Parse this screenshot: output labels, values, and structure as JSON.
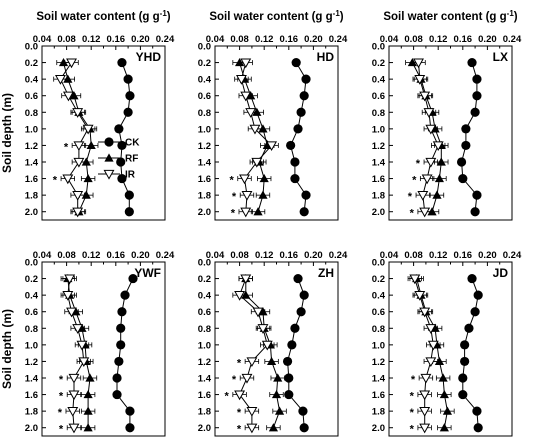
{
  "figure": {
    "x_axis_title": "Soil water content (g g",
    "x_axis_title_sup": "-1",
    "x_axis_title_close": ")",
    "y_axis_title": "Soil depth (m)"
  },
  "legend": {
    "labels": [
      "CK",
      "RF",
      "IR"
    ]
  },
  "chart_data": [
    {
      "type": "line",
      "title": "YHD",
      "xlabel": "Soil water content (g g-1)",
      "ylabel": "Soil depth (m)",
      "xlim": [
        0.04,
        0.24
      ],
      "ylim": [
        2.1,
        0.0
      ],
      "x_axis_position": "top",
      "xticks": [
        "0.04",
        "0.08",
        "0.12",
        "0.16",
        "0.20",
        "0.24"
      ],
      "yticks": [
        "0.0",
        "0.2",
        "0.4",
        "0.6",
        "0.8",
        "1.0",
        "1.2",
        "1.4",
        "1.6",
        "1.8",
        "2.0"
      ],
      "depths": [
        0.2,
        0.4,
        0.6,
        0.8,
        1.0,
        1.2,
        1.4,
        1.6,
        1.8,
        2.0
      ],
      "series": [
        {
          "name": "CK",
          "values": [
            0.17,
            0.18,
            0.183,
            0.18,
            0.165,
            0.17,
            0.168,
            0.17,
            0.182,
            0.182
          ]
        },
        {
          "name": "RF",
          "values": [
            0.075,
            0.082,
            0.092,
            0.1,
            0.118,
            0.12,
            0.112,
            0.115,
            0.112,
            0.1
          ]
        },
        {
          "name": "IR",
          "values": [
            0.088,
            0.07,
            0.083,
            0.098,
            0.115,
            0.1,
            0.1,
            0.082,
            0.098,
            0.098
          ]
        }
      ],
      "significance_markers": [
        "",
        "",
        "",
        "",
        "",
        "*",
        "",
        "*",
        "",
        ""
      ]
    },
    {
      "type": "line",
      "title": "HD",
      "xlabel": "Soil water content (g g-1)",
      "ylabel": "Soil depth (m)",
      "xlim": [
        0.04,
        0.24
      ],
      "ylim": [
        2.1,
        0.0
      ],
      "x_axis_position": "top",
      "xticks": [
        "0.04",
        "0.08",
        "0.12",
        "0.16",
        "0.20",
        "0.24"
      ],
      "yticks": [
        "0.0",
        "0.2",
        "0.4",
        "0.6",
        "0.8",
        "1.0",
        "1.2",
        "1.4",
        "1.6",
        "1.8",
        "2.0"
      ],
      "depths": [
        0.2,
        0.4,
        0.6,
        0.8,
        1.0,
        1.2,
        1.4,
        1.6,
        1.8,
        2.0
      ],
      "series": [
        {
          "name": "CK",
          "values": [
            0.172,
            0.188,
            0.185,
            0.18,
            0.175,
            0.163,
            0.17,
            0.17,
            0.188,
            0.185
          ]
        },
        {
          "name": "RF",
          "values": [
            0.08,
            0.088,
            0.098,
            0.108,
            0.118,
            0.125,
            0.112,
            0.12,
            0.118,
            0.11
          ]
        },
        {
          "name": "IR",
          "values": [
            0.09,
            0.083,
            0.09,
            0.098,
            0.105,
            0.132,
            0.108,
            0.088,
            0.092,
            0.09
          ]
        }
      ],
      "significance_markers": [
        "",
        "",
        "",
        "",
        "",
        "",
        "",
        "*",
        "*",
        "*"
      ]
    },
    {
      "type": "line",
      "title": "LX",
      "xlabel": "Soil water content (g g-1)",
      "ylabel": "Soil depth (m)",
      "xlim": [
        0.04,
        0.24
      ],
      "ylim": [
        2.1,
        0.0
      ],
      "x_axis_position": "top",
      "xticks": [
        "0.04",
        "0.08",
        "0.12",
        "0.16",
        "0.20",
        "0.24"
      ],
      "yticks": [
        "0.0",
        "0.2",
        "0.4",
        "0.6",
        "0.8",
        "1.0",
        "1.2",
        "1.4",
        "1.6",
        "1.8",
        "2.0"
      ],
      "depths": [
        0.2,
        0.4,
        0.6,
        0.8,
        1.0,
        1.2,
        1.4,
        1.6,
        1.8,
        2.0
      ],
      "series": [
        {
          "name": "CK",
          "values": [
            0.175,
            0.183,
            0.183,
            0.18,
            0.165,
            0.165,
            0.158,
            0.16,
            0.183,
            0.18
          ]
        },
        {
          "name": "RF",
          "values": [
            0.078,
            0.092,
            0.1,
            0.11,
            0.115,
            0.125,
            0.125,
            0.122,
            0.118,
            0.11
          ]
        },
        {
          "name": "IR",
          "values": [
            0.088,
            0.09,
            0.098,
            0.105,
            0.108,
            0.12,
            0.108,
            0.102,
            0.095,
            0.098
          ]
        }
      ],
      "significance_markers": [
        "",
        "",
        "",
        "",
        "",
        "",
        "*",
        "*",
        "*",
        "*"
      ]
    },
    {
      "type": "line",
      "title": "YWF",
      "xlabel": "Soil water content (g g-1)",
      "ylabel": "Soil depth (m)",
      "xlim": [
        0.04,
        0.24
      ],
      "ylim": [
        2.1,
        0.0
      ],
      "x_axis_position": "top",
      "xticks": [
        "0.04",
        "0.08",
        "0.12",
        "0.16",
        "0.20",
        "0.24"
      ],
      "yticks": [
        "0.0",
        "0.2",
        "0.4",
        "0.6",
        "0.8",
        "1.0",
        "1.2",
        "1.4",
        "1.6",
        "1.8",
        "2.0"
      ],
      "depths": [
        0.2,
        0.4,
        0.6,
        0.8,
        1.0,
        1.2,
        1.4,
        1.6,
        1.8,
        2.0
      ],
      "series": [
        {
          "name": "CK",
          "values": [
            0.188,
            0.175,
            0.17,
            0.168,
            0.168,
            0.165,
            0.162,
            0.162,
            0.183,
            0.183
          ]
        },
        {
          "name": "RF",
          "values": [
            0.082,
            0.085,
            0.095,
            0.105,
            0.11,
            0.112,
            0.118,
            0.115,
            0.115,
            0.115
          ]
        },
        {
          "name": "IR",
          "values": [
            0.085,
            0.082,
            0.088,
            0.098,
            0.105,
            0.108,
            0.092,
            0.092,
            0.09,
            0.092
          ]
        }
      ],
      "significance_markers": [
        "",
        "",
        "",
        "",
        "",
        "",
        "*",
        "*",
        "*",
        "*"
      ]
    },
    {
      "type": "line",
      "title": "ZH",
      "xlabel": "Soil water content (g g-1)",
      "ylabel": "Soil depth (m)",
      "xlim": [
        0.04,
        0.24
      ],
      "ylim": [
        2.1,
        0.0
      ],
      "x_axis_position": "top",
      "xticks": [
        "0.04",
        "0.08",
        "0.12",
        "0.16",
        "0.20",
        "0.24"
      ],
      "yticks": [
        "0.0",
        "0.2",
        "0.4",
        "0.6",
        "0.8",
        "1.0",
        "1.2",
        "1.4",
        "1.6",
        "1.8",
        "2.0"
      ],
      "depths": [
        0.2,
        0.4,
        0.6,
        0.8,
        1.0,
        1.2,
        1.4,
        1.6,
        1.8,
        2.0
      ],
      "series": [
        {
          "name": "CK",
          "values": [
            0.175,
            0.185,
            0.18,
            0.17,
            0.165,
            0.158,
            0.16,
            0.16,
            0.183,
            0.185
          ]
        },
        {
          "name": "RF",
          "values": [
            0.09,
            0.09,
            0.118,
            0.12,
            0.13,
            0.132,
            0.142,
            0.14,
            0.145,
            0.135
          ]
        },
        {
          "name": "IR",
          "values": [
            0.09,
            0.08,
            0.11,
            0.118,
            0.125,
            0.1,
            0.092,
            0.08,
            0.1,
            0.1
          ]
        }
      ],
      "significance_markers": [
        "",
        "",
        "",
        "",
        "",
        "*",
        "*",
        "*",
        "*",
        "*"
      ]
    },
    {
      "type": "line",
      "title": "JD",
      "xlabel": "Soil water content (g g-1)",
      "ylabel": "Soil depth (m)",
      "xlim": [
        0.04,
        0.24
      ],
      "ylim": [
        2.1,
        0.0
      ],
      "x_axis_position": "top",
      "xticks": [
        "0.04",
        "0.08",
        "0.12",
        "0.16",
        "0.20",
        "0.24"
      ],
      "yticks": [
        "0.0",
        "0.2",
        "0.4",
        "0.6",
        "0.8",
        "1.0",
        "1.2",
        "1.4",
        "1.6",
        "1.8",
        "2.0"
      ],
      "depths": [
        0.2,
        0.4,
        0.6,
        0.8,
        1.0,
        1.2,
        1.4,
        1.6,
        1.8,
        2.0
      ],
      "series": [
        {
          "name": "CK",
          "values": [
            0.175,
            0.185,
            0.18,
            0.17,
            0.163,
            0.163,
            0.16,
            0.16,
            0.183,
            0.185
          ]
        },
        {
          "name": "RF",
          "values": [
            0.085,
            0.092,
            0.1,
            0.115,
            0.118,
            0.122,
            0.128,
            0.13,
            0.135,
            0.13
          ]
        },
        {
          "name": "IR",
          "values": [
            0.082,
            0.09,
            0.098,
            0.108,
            0.112,
            0.108,
            0.1,
            0.098,
            0.098,
            0.098
          ]
        }
      ],
      "significance_markers": [
        "",
        "",
        "",
        "",
        "",
        "",
        "*",
        "*",
        "*",
        "*"
      ]
    }
  ]
}
